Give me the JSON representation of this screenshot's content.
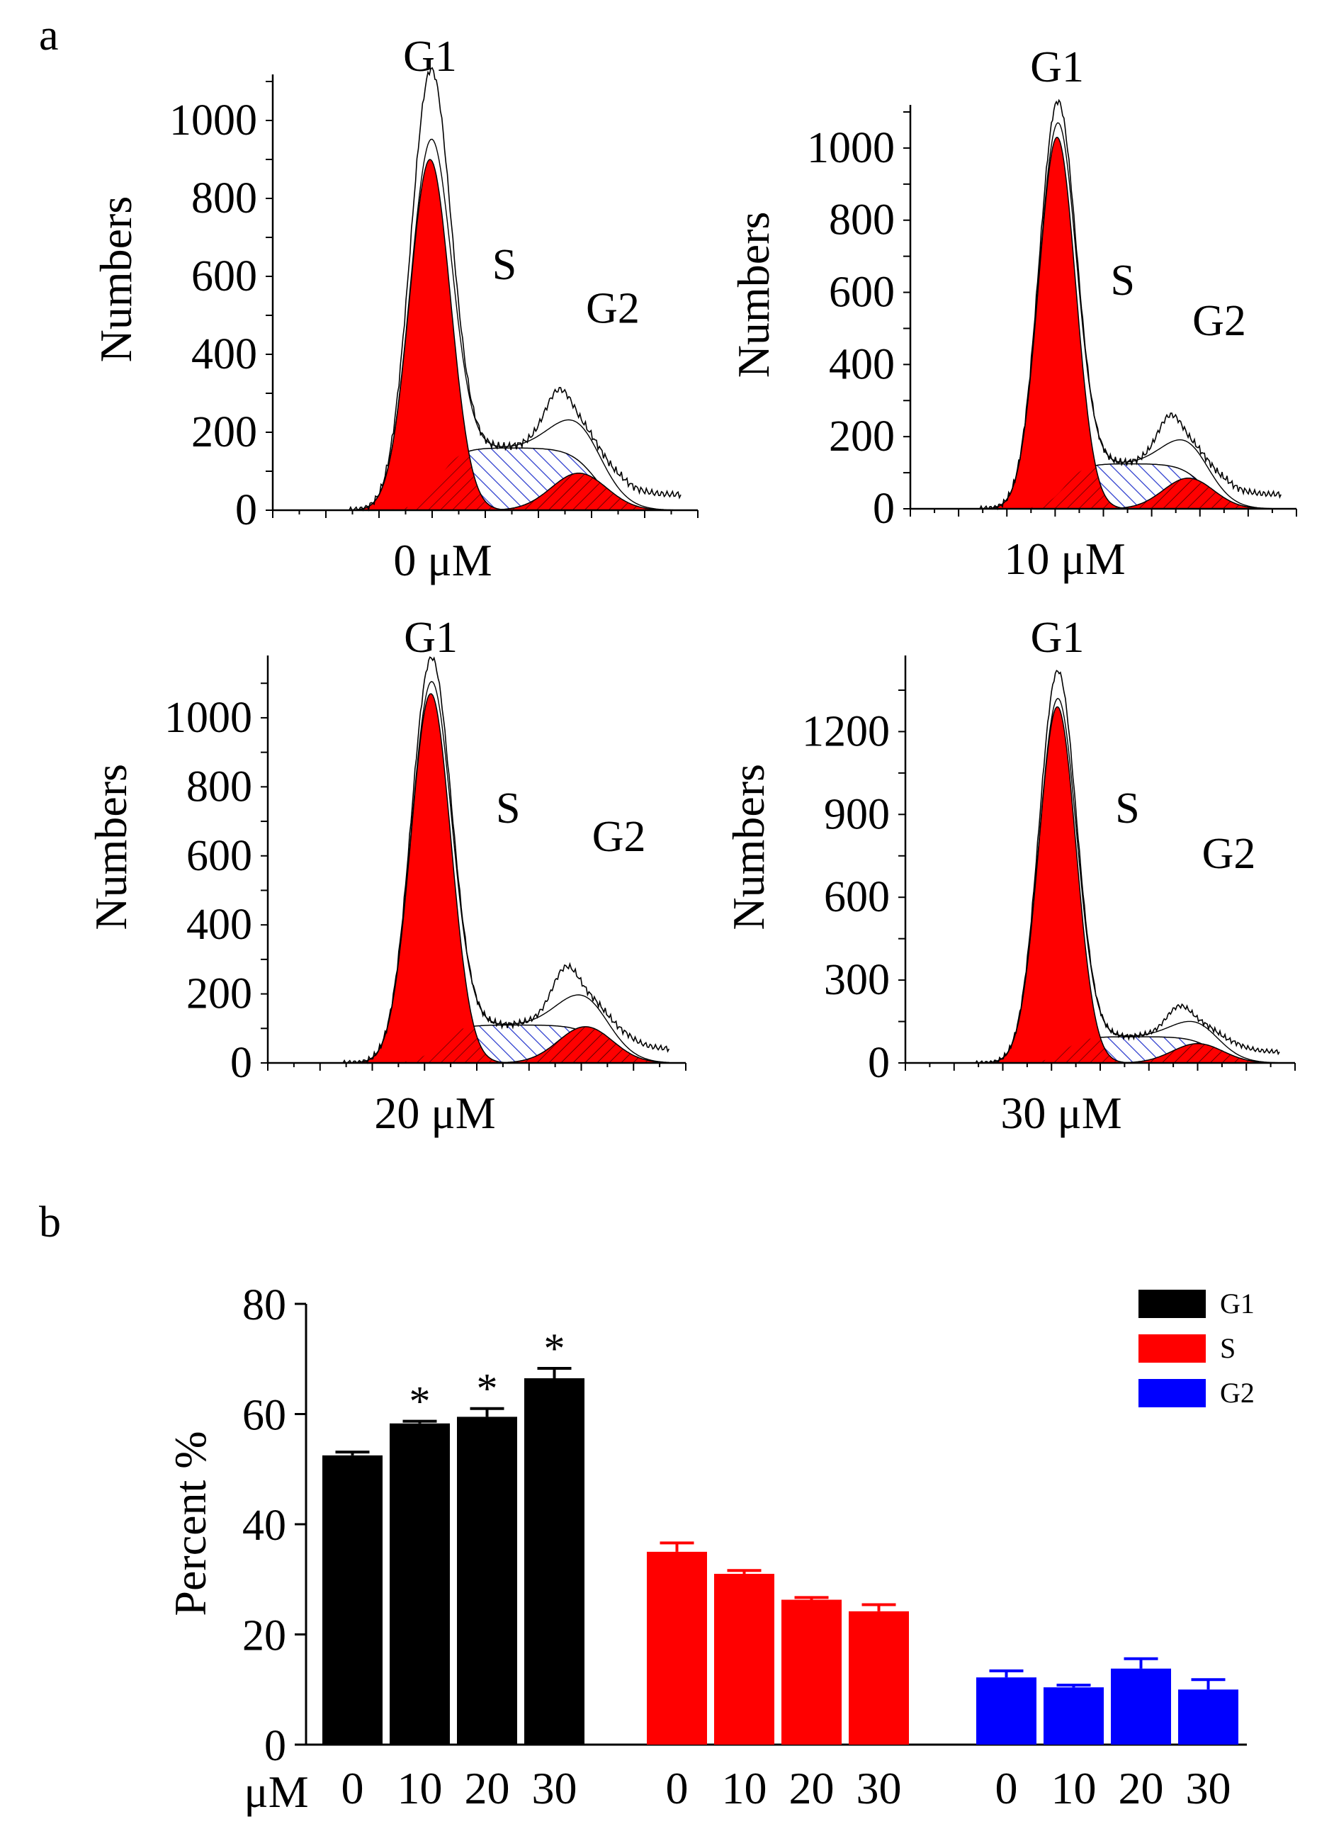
{
  "figure": {
    "panel_a_label": "a",
    "panel_b_label": "b"
  },
  "chart_data": [
    {
      "type": "area",
      "panel": "a",
      "dose": "0 μM",
      "ylabel": "Numbers",
      "yticks": [
        0,
        200,
        400,
        600,
        800,
        1000
      ],
      "ylim": [
        0,
        1100
      ],
      "peak_labels": [
        "G1",
        "S",
        "G2"
      ],
      "series": [
        {
          "name": "G1",
          "peak": 900,
          "center": 0.37
        },
        {
          "name": "S",
          "plateau": 160
        },
        {
          "name": "G2",
          "peak": 95,
          "center": 0.72
        },
        {
          "name": "total",
          "max": 1080
        }
      ]
    },
    {
      "type": "area",
      "panel": "a",
      "dose": "10 μM",
      "ylabel": "Numbers",
      "yticks": [
        0,
        200,
        400,
        600,
        800,
        1000
      ],
      "ylim": [
        0,
        1100
      ],
      "peak_labels": [
        "G1",
        "S",
        "G2"
      ],
      "series": [
        {
          "name": "G1",
          "peak": 1030,
          "center": 0.38
        },
        {
          "name": "S",
          "plateau": 125
        },
        {
          "name": "G2",
          "peak": 85,
          "center": 0.72
        },
        {
          "name": "total",
          "max": 1090
        }
      ]
    },
    {
      "type": "area",
      "panel": "a",
      "dose": "20 μM",
      "ylabel": "Numbers",
      "yticks": [
        0,
        200,
        400,
        600,
        800,
        1000
      ],
      "ylim": [
        0,
        1160
      ],
      "peak_labels": [
        "G1",
        "S",
        "G2"
      ],
      "series": [
        {
          "name": "G1",
          "peak": 1070,
          "center": 0.39
        },
        {
          "name": "S",
          "plateau": 110
        },
        {
          "name": "G2",
          "peak": 105,
          "center": 0.76
        },
        {
          "name": "total",
          "max": 1140
        }
      ]
    },
    {
      "type": "area",
      "panel": "a",
      "dose": "30 μM",
      "ylabel": "Numbers",
      "yticks": [
        0,
        300,
        600,
        900,
        1200
      ],
      "ylim": [
        0,
        1450
      ],
      "peak_labels": [
        "G1",
        "S",
        "G2"
      ],
      "series": [
        {
          "name": "G1",
          "peak": 1290,
          "center": 0.39
        },
        {
          "name": "S",
          "plateau": 95
        },
        {
          "name": "G2",
          "peak": 70,
          "center": 0.75
        },
        {
          "name": "total",
          "max": 1390
        }
      ]
    },
    {
      "type": "bar",
      "panel": "b",
      "ylabel": "Percent %",
      "xlabel": "μM",
      "ylim": [
        0,
        80
      ],
      "yticks": [
        0,
        20,
        40,
        60,
        80
      ],
      "categories": [
        "0",
        "10",
        "20",
        "30"
      ],
      "series": [
        {
          "name": "G1",
          "color": "#000000",
          "values": [
            52.5,
            58.3,
            59.5,
            66.5
          ],
          "errors": [
            0.6,
            0.4,
            1.5,
            1.8
          ],
          "significant": [
            false,
            true,
            true,
            true
          ]
        },
        {
          "name": "S",
          "color": "#ff0000",
          "values": [
            35,
            31,
            26.3,
            24.2
          ],
          "errors": [
            1.6,
            0.6,
            0.4,
            1.2
          ],
          "significant": [
            false,
            false,
            false,
            false
          ]
        },
        {
          "name": "G2",
          "color": "#0000ff",
          "values": [
            12.2,
            10.4,
            13.8,
            10
          ],
          "errors": [
            1.2,
            0.4,
            1.8,
            1.8
          ],
          "significant": [
            false,
            false,
            false,
            false
          ]
        }
      ],
      "significance_marker": "*"
    }
  ]
}
